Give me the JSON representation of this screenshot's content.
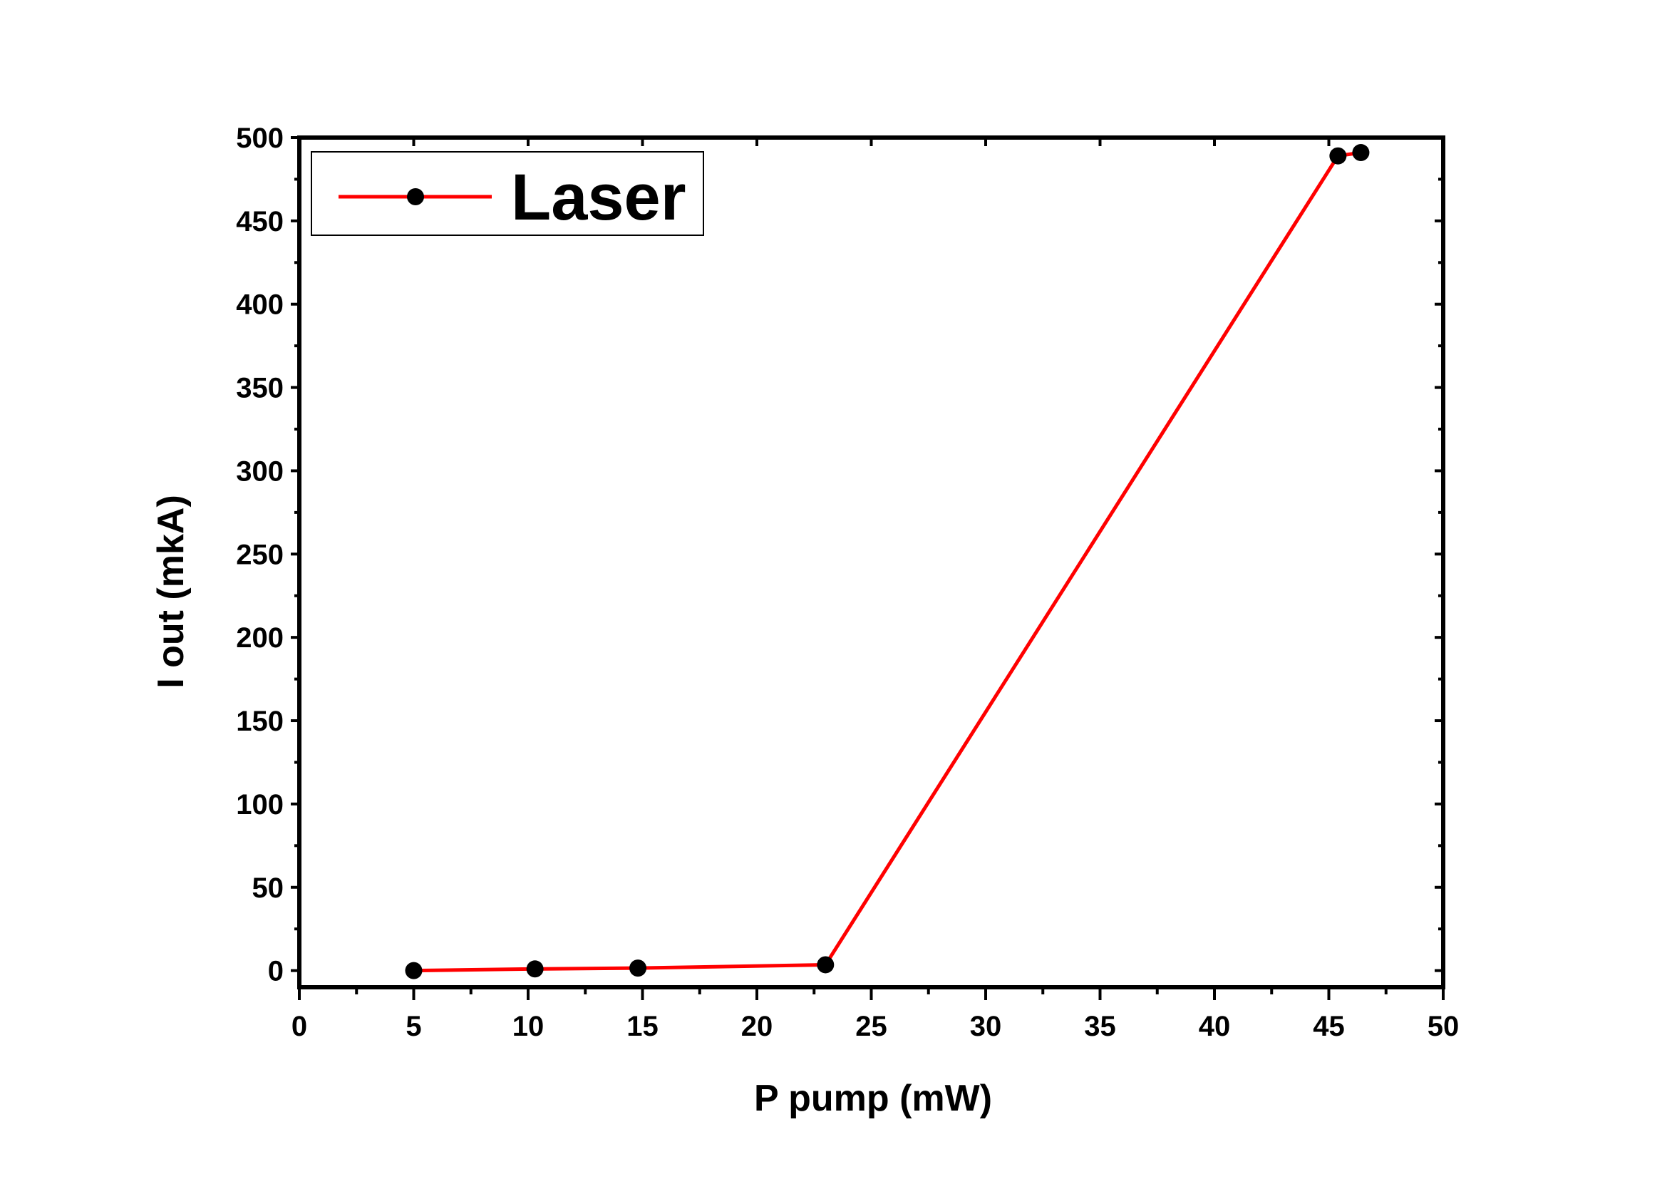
{
  "chart_data": {
    "type": "line",
    "xlabel": "P pump (mW)",
    "ylabel": "I out (mkA)",
    "xlim": [
      0,
      50
    ],
    "ylim": [
      -10,
      500
    ],
    "x_ticks": [
      "0",
      "5",
      "10",
      "15",
      "20",
      "25",
      "30",
      "35",
      "40",
      "45",
      "50"
    ],
    "y_ticks": [
      "0",
      "50",
      "100",
      "150",
      "200",
      "250",
      "300",
      "350",
      "400",
      "450",
      "500"
    ],
    "grid": false,
    "legend_position": "top-left",
    "series": [
      {
        "name": "Laser",
        "line_color": "#ff0000",
        "marker_color": "#000000",
        "x": [
          5.0,
          10.3,
          14.8,
          23.0,
          45.4,
          46.4
        ],
        "y": [
          0,
          1,
          1.5,
          3.5,
          489,
          491
        ]
      }
    ]
  }
}
